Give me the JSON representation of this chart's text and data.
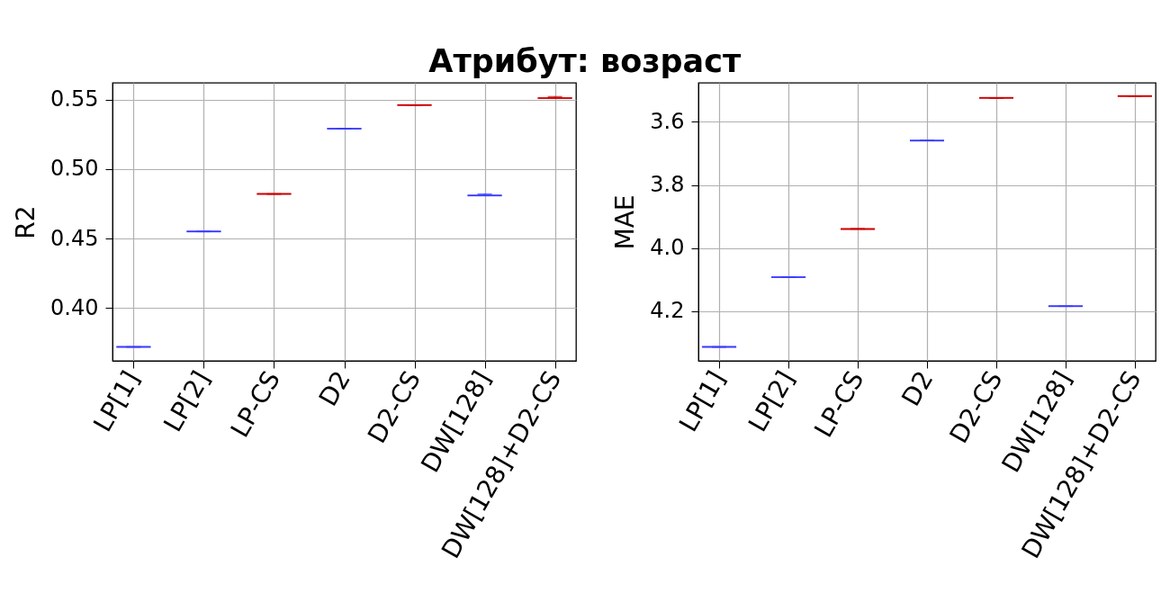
{
  "chart_data": [
    {
      "type": "box",
      "title": "Атрибут: возраст",
      "ylabel": "R2",
      "categories": [
        "LP[1]",
        "LP[2]",
        "LP-CS",
        "D2",
        "D2-CS",
        "DW[128]",
        "DW[128]+D2-CS"
      ],
      "boxes": [
        {
          "low": 0.372,
          "q1": 0.372,
          "median": 0.372,
          "q3": 0.372,
          "high": 0.372
        },
        {
          "low": 0.455,
          "q1": 0.455,
          "median": 0.455,
          "q3": 0.455,
          "high": 0.455
        },
        {
          "low": 0.482,
          "q1": 0.482,
          "median": 0.482,
          "q3": 0.482,
          "high": 0.482
        },
        {
          "low": 0.529,
          "q1": 0.529,
          "median": 0.529,
          "q3": 0.529,
          "high": 0.529
        },
        {
          "low": 0.546,
          "q1": 0.546,
          "median": 0.546,
          "q3": 0.546,
          "high": 0.546
        },
        {
          "low": 0.481,
          "q1": 0.481,
          "median": 0.481,
          "q3": 0.481,
          "high": 0.482
        },
        {
          "low": 0.551,
          "q1": 0.551,
          "median": 0.551,
          "q3": 0.551,
          "high": 0.552
        }
      ],
      "colors": [
        "#3a3aff",
        "#3a3aff",
        "#cc0000",
        "#3a3aff",
        "#cc0000",
        "#3a3aff",
        "#cc0000"
      ],
      "ylim": [
        0.362,
        0.562
      ],
      "yticks": [
        {
          "value": 0.4,
          "label": "0.40"
        },
        {
          "value": 0.45,
          "label": "0.45"
        },
        {
          "value": 0.5,
          "label": "0.50"
        },
        {
          "value": 0.55,
          "label": "0.55"
        }
      ],
      "grid": true
    },
    {
      "type": "box",
      "ylabel": "MAE",
      "categories": [
        "LP[1]",
        "LP[2]",
        "LP-CS",
        "D2",
        "D2-CS",
        "DW[128]",
        "DW[128]+D2-CS"
      ],
      "boxes": [
        {
          "low": 4.313,
          "q1": 4.313,
          "median": 4.313,
          "q3": 4.313,
          "high": 4.313
        },
        {
          "low": 4.092,
          "q1": 4.092,
          "median": 4.092,
          "q3": 4.092,
          "high": 4.092
        },
        {
          "low": 3.939,
          "q1": 3.939,
          "median": 3.939,
          "q3": 3.939,
          "high": 3.939
        },
        {
          "low": 3.659,
          "q1": 3.659,
          "median": 3.659,
          "q3": 3.659,
          "high": 3.659
        },
        {
          "low": 3.524,
          "q1": 3.524,
          "median": 3.524,
          "q3": 3.524,
          "high": 3.524
        },
        {
          "low": 4.184,
          "q1": 4.184,
          "median": 4.184,
          "q3": 4.184,
          "high": 4.184
        },
        {
          "low": 3.518,
          "q1": 3.518,
          "median": 3.518,
          "q3": 3.518,
          "high": 3.518
        }
      ],
      "colors": [
        "#3a3aff",
        "#3a3aff",
        "#cc0000",
        "#3a3aff",
        "#cc0000",
        "#3a3aff",
        "#cc0000"
      ],
      "ylim": [
        4.357,
        3.476
      ],
      "yticks": [
        3.6,
        3.8,
        {
          "value": 4.0,
          "label": "4.0"
        },
        4.2
      ],
      "grid": true
    }
  ]
}
